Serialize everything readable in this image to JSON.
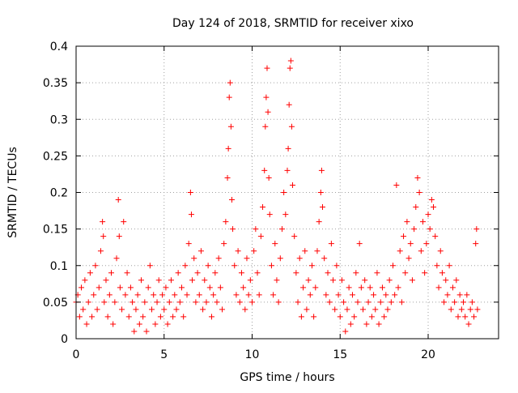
{
  "chart_data": {
    "type": "scatter",
    "title": "Day 124 of 2018, SRMTID for receiver xixo",
    "xlabel": "GPS time / hours",
    "ylabel": "SRMTID / TECUs",
    "xlim": [
      0,
      24
    ],
    "ylim": [
      0,
      0.4
    ],
    "x_ticks": [
      0,
      5,
      10,
      15,
      20
    ],
    "x_tick_labels": [
      "0",
      "5",
      "10",
      "15",
      "20"
    ],
    "y_ticks": [
      0,
      0.05,
      0.1,
      0.15,
      0.2,
      0.25,
      0.3,
      0.35,
      0.4
    ],
    "y_tick_labels": [
      "0",
      "0.05",
      "0.1",
      "0.15",
      "0.2",
      "0.25",
      "0.3",
      "0.35",
      "0.4"
    ],
    "grid": true,
    "marker": "+",
    "series": [
      {
        "name": "SRMTID",
        "color": "#ff0000",
        "points": [
          [
            0.0,
            0.05
          ],
          [
            0.1,
            0.06
          ],
          [
            0.2,
            0.03
          ],
          [
            0.3,
            0.07
          ],
          [
            0.4,
            0.04
          ],
          [
            0.5,
            0.08
          ],
          [
            0.6,
            0.02
          ],
          [
            0.7,
            0.05
          ],
          [
            0.8,
            0.09
          ],
          [
            0.9,
            0.03
          ],
          [
            1.0,
            0.06
          ],
          [
            1.1,
            0.1
          ],
          [
            1.2,
            0.04
          ],
          [
            1.3,
            0.07
          ],
          [
            1.4,
            0.12
          ],
          [
            1.5,
            0.16
          ],
          [
            1.55,
            0.14
          ],
          [
            1.6,
            0.05
          ],
          [
            1.7,
            0.08
          ],
          [
            1.8,
            0.03
          ],
          [
            1.9,
            0.06
          ],
          [
            2.0,
            0.09
          ],
          [
            2.1,
            0.02
          ],
          [
            2.2,
            0.05
          ],
          [
            2.3,
            0.11
          ],
          [
            2.4,
            0.19
          ],
          [
            2.45,
            0.14
          ],
          [
            2.5,
            0.07
          ],
          [
            2.6,
            0.04
          ],
          [
            2.7,
            0.16
          ],
          [
            2.8,
            0.06
          ],
          [
            2.9,
            0.09
          ],
          [
            3.0,
            0.03
          ],
          [
            3.1,
            0.07
          ],
          [
            3.2,
            0.05
          ],
          [
            3.3,
            0.01
          ],
          [
            3.4,
            0.04
          ],
          [
            3.5,
            0.06
          ],
          [
            3.6,
            0.02
          ],
          [
            3.7,
            0.08
          ],
          [
            3.8,
            0.03
          ],
          [
            3.9,
            0.05
          ],
          [
            4.0,
            0.01
          ],
          [
            4.1,
            0.07
          ],
          [
            4.2,
            0.1
          ],
          [
            4.3,
            0.04
          ],
          [
            4.4,
            0.06
          ],
          [
            4.5,
            0.02
          ],
          [
            4.6,
            0.05
          ],
          [
            4.7,
            0.08
          ],
          [
            4.8,
            0.03
          ],
          [
            4.9,
            0.06
          ],
          [
            5.0,
            0.04
          ],
          [
            5.1,
            0.07
          ],
          [
            5.2,
            0.02
          ],
          [
            5.3,
            0.05
          ],
          [
            5.4,
            0.08
          ],
          [
            5.5,
            0.03
          ],
          [
            5.6,
            0.06
          ],
          [
            5.7,
            0.04
          ],
          [
            5.8,
            0.09
          ],
          [
            5.9,
            0.05
          ],
          [
            6.0,
            0.07
          ],
          [
            6.1,
            0.03
          ],
          [
            6.2,
            0.1
          ],
          [
            6.3,
            0.06
          ],
          [
            6.4,
            0.13
          ],
          [
            6.5,
            0.2
          ],
          [
            6.55,
            0.17
          ],
          [
            6.6,
            0.08
          ],
          [
            6.7,
            0.11
          ],
          [
            6.8,
            0.05
          ],
          [
            6.9,
            0.09
          ],
          [
            7.0,
            0.06
          ],
          [
            7.1,
            0.12
          ],
          [
            7.2,
            0.04
          ],
          [
            7.3,
            0.08
          ],
          [
            7.4,
            0.05
          ],
          [
            7.5,
            0.1
          ],
          [
            7.6,
            0.07
          ],
          [
            7.7,
            0.03
          ],
          [
            7.8,
            0.06
          ],
          [
            7.9,
            0.09
          ],
          [
            8.0,
            0.05
          ],
          [
            8.1,
            0.11
          ],
          [
            8.2,
            0.07
          ],
          [
            8.3,
            0.04
          ],
          [
            8.4,
            0.13
          ],
          [
            8.5,
            0.16
          ],
          [
            8.6,
            0.22
          ],
          [
            8.65,
            0.26
          ],
          [
            8.7,
            0.33
          ],
          [
            8.75,
            0.35
          ],
          [
            8.8,
            0.29
          ],
          [
            8.85,
            0.19
          ],
          [
            8.9,
            0.15
          ],
          [
            9.0,
            0.1
          ],
          [
            9.1,
            0.06
          ],
          [
            9.2,
            0.12
          ],
          [
            9.3,
            0.05
          ],
          [
            9.4,
            0.09
          ],
          [
            9.5,
            0.07
          ],
          [
            9.6,
            0.04
          ],
          [
            9.7,
            0.11
          ],
          [
            9.8,
            0.06
          ],
          [
            9.9,
            0.08
          ],
          [
            10.0,
            0.05
          ],
          [
            10.1,
            0.12
          ],
          [
            10.2,
            0.15
          ],
          [
            10.3,
            0.09
          ],
          [
            10.4,
            0.06
          ],
          [
            10.5,
            0.14
          ],
          [
            10.6,
            0.18
          ],
          [
            10.7,
            0.23
          ],
          [
            10.75,
            0.29
          ],
          [
            10.8,
            0.33
          ],
          [
            10.85,
            0.37
          ],
          [
            10.9,
            0.31
          ],
          [
            10.95,
            0.22
          ],
          [
            11.0,
            0.17
          ],
          [
            11.1,
            0.1
          ],
          [
            11.2,
            0.06
          ],
          [
            11.3,
            0.13
          ],
          [
            11.4,
            0.08
          ],
          [
            11.5,
            0.05
          ],
          [
            11.6,
            0.11
          ],
          [
            11.7,
            0.15
          ],
          [
            11.8,
            0.2
          ],
          [
            11.9,
            0.17
          ],
          [
            12.0,
            0.23
          ],
          [
            12.05,
            0.26
          ],
          [
            12.1,
            0.32
          ],
          [
            12.15,
            0.37
          ],
          [
            12.2,
            0.38
          ],
          [
            12.25,
            0.29
          ],
          [
            12.3,
            0.21
          ],
          [
            12.4,
            0.14
          ],
          [
            12.5,
            0.09
          ],
          [
            12.6,
            0.05
          ],
          [
            12.7,
            0.11
          ],
          [
            12.8,
            0.03
          ],
          [
            12.9,
            0.07
          ],
          [
            13.0,
            0.12
          ],
          [
            13.1,
            0.04
          ],
          [
            13.2,
            0.08
          ],
          [
            13.3,
            0.06
          ],
          [
            13.4,
            0.1
          ],
          [
            13.5,
            0.03
          ],
          [
            13.6,
            0.07
          ],
          [
            13.7,
            0.12
          ],
          [
            13.8,
            0.16
          ],
          [
            13.9,
            0.2
          ],
          [
            13.95,
            0.23
          ],
          [
            14.0,
            0.18
          ],
          [
            14.1,
            0.11
          ],
          [
            14.2,
            0.06
          ],
          [
            14.3,
            0.09
          ],
          [
            14.4,
            0.05
          ],
          [
            14.5,
            0.13
          ],
          [
            14.6,
            0.08
          ],
          [
            14.7,
            0.04
          ],
          [
            14.8,
            0.1
          ],
          [
            14.9,
            0.06
          ],
          [
            15.0,
            0.03
          ],
          [
            15.1,
            0.08
          ],
          [
            15.2,
            0.05
          ],
          [
            15.3,
            0.01
          ],
          [
            15.4,
            0.04
          ],
          [
            15.5,
            0.07
          ],
          [
            15.6,
            0.02
          ],
          [
            15.7,
            0.06
          ],
          [
            15.8,
            0.03
          ],
          [
            15.9,
            0.09
          ],
          [
            16.0,
            0.05
          ],
          [
            16.1,
            0.13
          ],
          [
            16.2,
            0.07
          ],
          [
            16.3,
            0.04
          ],
          [
            16.4,
            0.08
          ],
          [
            16.5,
            0.02
          ],
          [
            16.6,
            0.05
          ],
          [
            16.7,
            0.07
          ],
          [
            16.8,
            0.03
          ],
          [
            16.9,
            0.06
          ],
          [
            17.0,
            0.04
          ],
          [
            17.1,
            0.09
          ],
          [
            17.2,
            0.02
          ],
          [
            17.3,
            0.05
          ],
          [
            17.4,
            0.07
          ],
          [
            17.5,
            0.03
          ],
          [
            17.6,
            0.06
          ],
          [
            17.7,
            0.04
          ],
          [
            17.8,
            0.08
          ],
          [
            17.9,
            0.05
          ],
          [
            18.0,
            0.1
          ],
          [
            18.1,
            0.06
          ],
          [
            18.2,
            0.21
          ],
          [
            18.3,
            0.07
          ],
          [
            18.4,
            0.12
          ],
          [
            18.5,
            0.05
          ],
          [
            18.6,
            0.14
          ],
          [
            18.7,
            0.09
          ],
          [
            18.8,
            0.16
          ],
          [
            18.9,
            0.11
          ],
          [
            19.0,
            0.13
          ],
          [
            19.1,
            0.08
          ],
          [
            19.2,
            0.15
          ],
          [
            19.3,
            0.18
          ],
          [
            19.4,
            0.22
          ],
          [
            19.5,
            0.2
          ],
          [
            19.6,
            0.12
          ],
          [
            19.7,
            0.16
          ],
          [
            19.8,
            0.09
          ],
          [
            19.9,
            0.13
          ],
          [
            20.0,
            0.17
          ],
          [
            20.1,
            0.15
          ],
          [
            20.2,
            0.19
          ],
          [
            20.3,
            0.18
          ],
          [
            20.4,
            0.14
          ],
          [
            20.5,
            0.1
          ],
          [
            20.6,
            0.07
          ],
          [
            20.7,
            0.12
          ],
          [
            20.8,
            0.09
          ],
          [
            20.9,
            0.05
          ],
          [
            21.0,
            0.08
          ],
          [
            21.1,
            0.06
          ],
          [
            21.2,
            0.1
          ],
          [
            21.3,
            0.04
          ],
          [
            21.4,
            0.07
          ],
          [
            21.5,
            0.05
          ],
          [
            21.6,
            0.08
          ],
          [
            21.7,
            0.03
          ],
          [
            21.8,
            0.06
          ],
          [
            21.9,
            0.04
          ],
          [
            22.0,
            0.05
          ],
          [
            22.1,
            0.03
          ],
          [
            22.2,
            0.06
          ],
          [
            22.3,
            0.02
          ],
          [
            22.4,
            0.04
          ],
          [
            22.5,
            0.05
          ],
          [
            22.6,
            0.03
          ],
          [
            22.7,
            0.13
          ],
          [
            22.75,
            0.15
          ],
          [
            22.8,
            0.04
          ]
        ]
      }
    ]
  }
}
